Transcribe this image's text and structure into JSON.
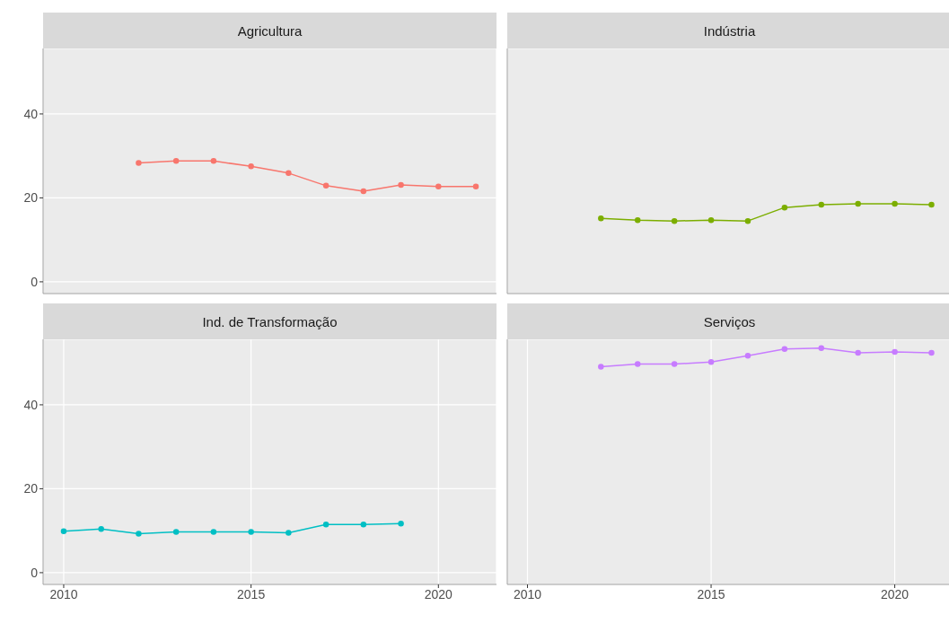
{
  "chart_data": [
    {
      "type": "line",
      "title": "Agricultura",
      "x": [
        2012,
        2013,
        2014,
        2015,
        2016,
        2017,
        2018,
        2019,
        2020,
        2021
      ],
      "values": [
        28.3,
        28.8,
        28.8,
        27.5,
        25.9,
        22.9,
        21.6,
        23.1,
        22.7,
        22.7
      ],
      "color": "#f8766d",
      "xlim": [
        2009.45,
        2021.55
      ],
      "ylim": [
        -2.8,
        55.6
      ],
      "xticks": [
        2010,
        2015,
        2020
      ],
      "yticks": [
        0,
        20,
        40
      ],
      "grid": true,
      "marker": "circle",
      "tick_labels": "y"
    },
    {
      "type": "line",
      "title": "Indústria",
      "x": [
        2012,
        2013,
        2014,
        2015,
        2016,
        2017,
        2018,
        2019,
        2020,
        2021
      ],
      "values": [
        15.1,
        14.7,
        14.5,
        14.7,
        14.5,
        17.7,
        18.4,
        18.6,
        18.6,
        18.4
      ],
      "color": "#7cae00",
      "xlim": [
        2009.45,
        2021.55
      ],
      "ylim": [
        -2.8,
        55.6
      ],
      "xticks": [
        2010,
        2015,
        2020
      ],
      "yticks": [
        0,
        20,
        40
      ],
      "grid": true,
      "marker": "circle",
      "tick_labels": false
    },
    {
      "type": "line",
      "title": "Ind. de Transformação",
      "x": [
        2010,
        2011,
        2012,
        2013,
        2014,
        2015,
        2016,
        2017,
        2018,
        2019
      ],
      "values": [
        9.9,
        10.4,
        9.3,
        9.7,
        9.7,
        9.7,
        9.5,
        11.5,
        11.5,
        11.7
      ],
      "color": "#00bfc4",
      "xlim": [
        2009.45,
        2021.55
      ],
      "ylim": [
        -2.8,
        55.6
      ],
      "xticks": [
        2010,
        2015,
        2020
      ],
      "yticks": [
        0,
        20,
        40
      ],
      "grid": true,
      "marker": "circle"
    },
    {
      "type": "line",
      "title": "Serviços",
      "x": [
        2012,
        2013,
        2014,
        2015,
        2016,
        2017,
        2018,
        2019,
        2020,
        2021
      ],
      "values": [
        49.1,
        49.7,
        49.7,
        50.2,
        51.7,
        53.3,
        53.5,
        52.4,
        52.6,
        52.4
      ],
      "color": "#c77cff",
      "xlim": [
        2009.45,
        2021.55
      ],
      "ylim": [
        -2.8,
        55.6
      ],
      "xticks": [
        2010,
        2015,
        2020
      ],
      "yticks": [
        0,
        20,
        40
      ],
      "grid": true,
      "marker": "circle",
      "tick_labels": "x"
    }
  ]
}
